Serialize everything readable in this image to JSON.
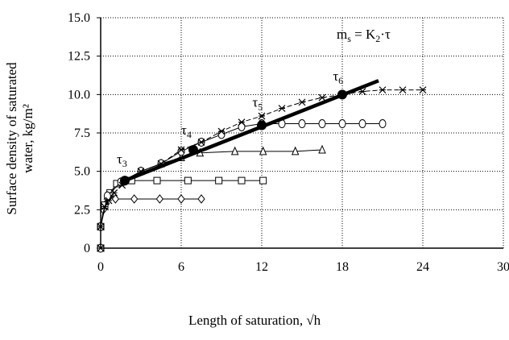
{
  "chart_data": {
    "type": "line",
    "title": "",
    "xlabel": "Length of saturation, √h",
    "ylabel_line1": "Surface density of saturated",
    "ylabel_line2": "water, kg/m²",
    "xlim": [
      0,
      30
    ],
    "ylim": [
      0,
      15
    ],
    "x_ticks": [
      0,
      6,
      12,
      18,
      24,
      30
    ],
    "x_tick_labels": [
      "0",
      "6",
      "12",
      "18",
      "24",
      "30"
    ],
    "y_ticks": [
      0,
      2.5,
      5,
      7.5,
      10,
      12.5,
      15
    ],
    "y_tick_labels": [
      "0",
      "2.5",
      "5.0",
      "7.5",
      "10.0",
      "12.5",
      "15.0"
    ],
    "grid": "dotted",
    "formula": "m_s = K_2·τ",
    "series": [
      {
        "marker": "diamond",
        "points": [
          [
            0,
            0
          ],
          [
            0,
            1.4
          ],
          [
            0.2,
            2.5
          ],
          [
            0.4,
            2.9
          ],
          [
            0.7,
            3.4
          ],
          [
            1.1,
            3.2
          ],
          [
            2.5,
            3.2
          ],
          [
            4.4,
            3.2
          ],
          [
            6.0,
            3.2
          ],
          [
            7.5,
            3.2
          ]
        ]
      },
      {
        "marker": "square",
        "points": [
          [
            0,
            0
          ],
          [
            0,
            1.4
          ],
          [
            0.3,
            2.8
          ],
          [
            0.7,
            3.6
          ],
          [
            1.2,
            4.2
          ],
          [
            2.3,
            4.4
          ],
          [
            4.2,
            4.4
          ],
          [
            6.5,
            4.4
          ],
          [
            8.8,
            4.4
          ],
          [
            10.5,
            4.4
          ],
          [
            12.1,
            4.4
          ]
        ]
      },
      {
        "marker": "triangle",
        "points": [
          [
            0,
            0
          ],
          [
            0,
            1.4
          ],
          [
            0.5,
            3.4
          ],
          [
            1.5,
            4.3
          ],
          [
            3.0,
            5.0
          ],
          [
            4.5,
            5.5
          ],
          [
            6.0,
            5.9
          ],
          [
            7.4,
            6.2
          ],
          [
            10.0,
            6.3
          ],
          [
            12.1,
            6.3
          ],
          [
            14.5,
            6.3
          ],
          [
            16.5,
            6.4
          ]
        ]
      },
      {
        "marker": "circle",
        "points": [
          [
            0,
            0
          ],
          [
            0,
            1.4
          ],
          [
            0.5,
            3.4
          ],
          [
            1.5,
            4.3
          ],
          [
            3.0,
            5.0
          ],
          [
            4.5,
            5.5
          ],
          [
            6.0,
            6.3
          ],
          [
            7.5,
            6.9
          ],
          [
            9.0,
            7.4
          ],
          [
            10.5,
            7.9
          ],
          [
            12.0,
            8.1
          ],
          [
            13.5,
            8.1
          ],
          [
            15.0,
            8.1
          ],
          [
            16.5,
            8.1
          ],
          [
            18.0,
            8.1
          ],
          [
            19.5,
            8.1
          ],
          [
            21.0,
            8.1
          ]
        ]
      },
      {
        "marker": "star",
        "points": [
          [
            0,
            0
          ],
          [
            0,
            1.4
          ],
          [
            0.3,
            2.7
          ],
          [
            0.6,
            3.1
          ],
          [
            1.0,
            3.6
          ],
          [
            1.6,
            4.1
          ],
          [
            3.0,
            5.0
          ],
          [
            4.5,
            5.5
          ],
          [
            6.0,
            6.4
          ],
          [
            7.5,
            6.9
          ],
          [
            9.0,
            7.6
          ],
          [
            10.5,
            8.2
          ],
          [
            12.0,
            8.6
          ],
          [
            13.5,
            9.1
          ],
          [
            15.0,
            9.5
          ],
          [
            16.5,
            9.8
          ],
          [
            18.0,
            10.0
          ],
          [
            19.5,
            10.2
          ],
          [
            21.0,
            10.3
          ],
          [
            22.5,
            10.3
          ],
          [
            24.0,
            10.3
          ]
        ]
      }
    ],
    "trend_line": {
      "points": [
        [
          1.8,
          4.4
        ],
        [
          20.7,
          10.9
        ]
      ],
      "markers": [
        [
          1.8,
          4.4
        ],
        [
          6.9,
          6.4
        ],
        [
          12.0,
          8.0
        ],
        [
          18.0,
          10.0
        ]
      ]
    },
    "annotations": [
      {
        "base": "τ",
        "sub": "3",
        "x": 1.2,
        "y": 5.5
      },
      {
        "base": "τ",
        "sub": "4",
        "x": 6.0,
        "y": 7.4
      },
      {
        "base": "τ",
        "sub": "5",
        "x": 11.3,
        "y": 9.2
      },
      {
        "base": "τ",
        "sub": "6",
        "x": 17.3,
        "y": 10.9
      }
    ]
  }
}
